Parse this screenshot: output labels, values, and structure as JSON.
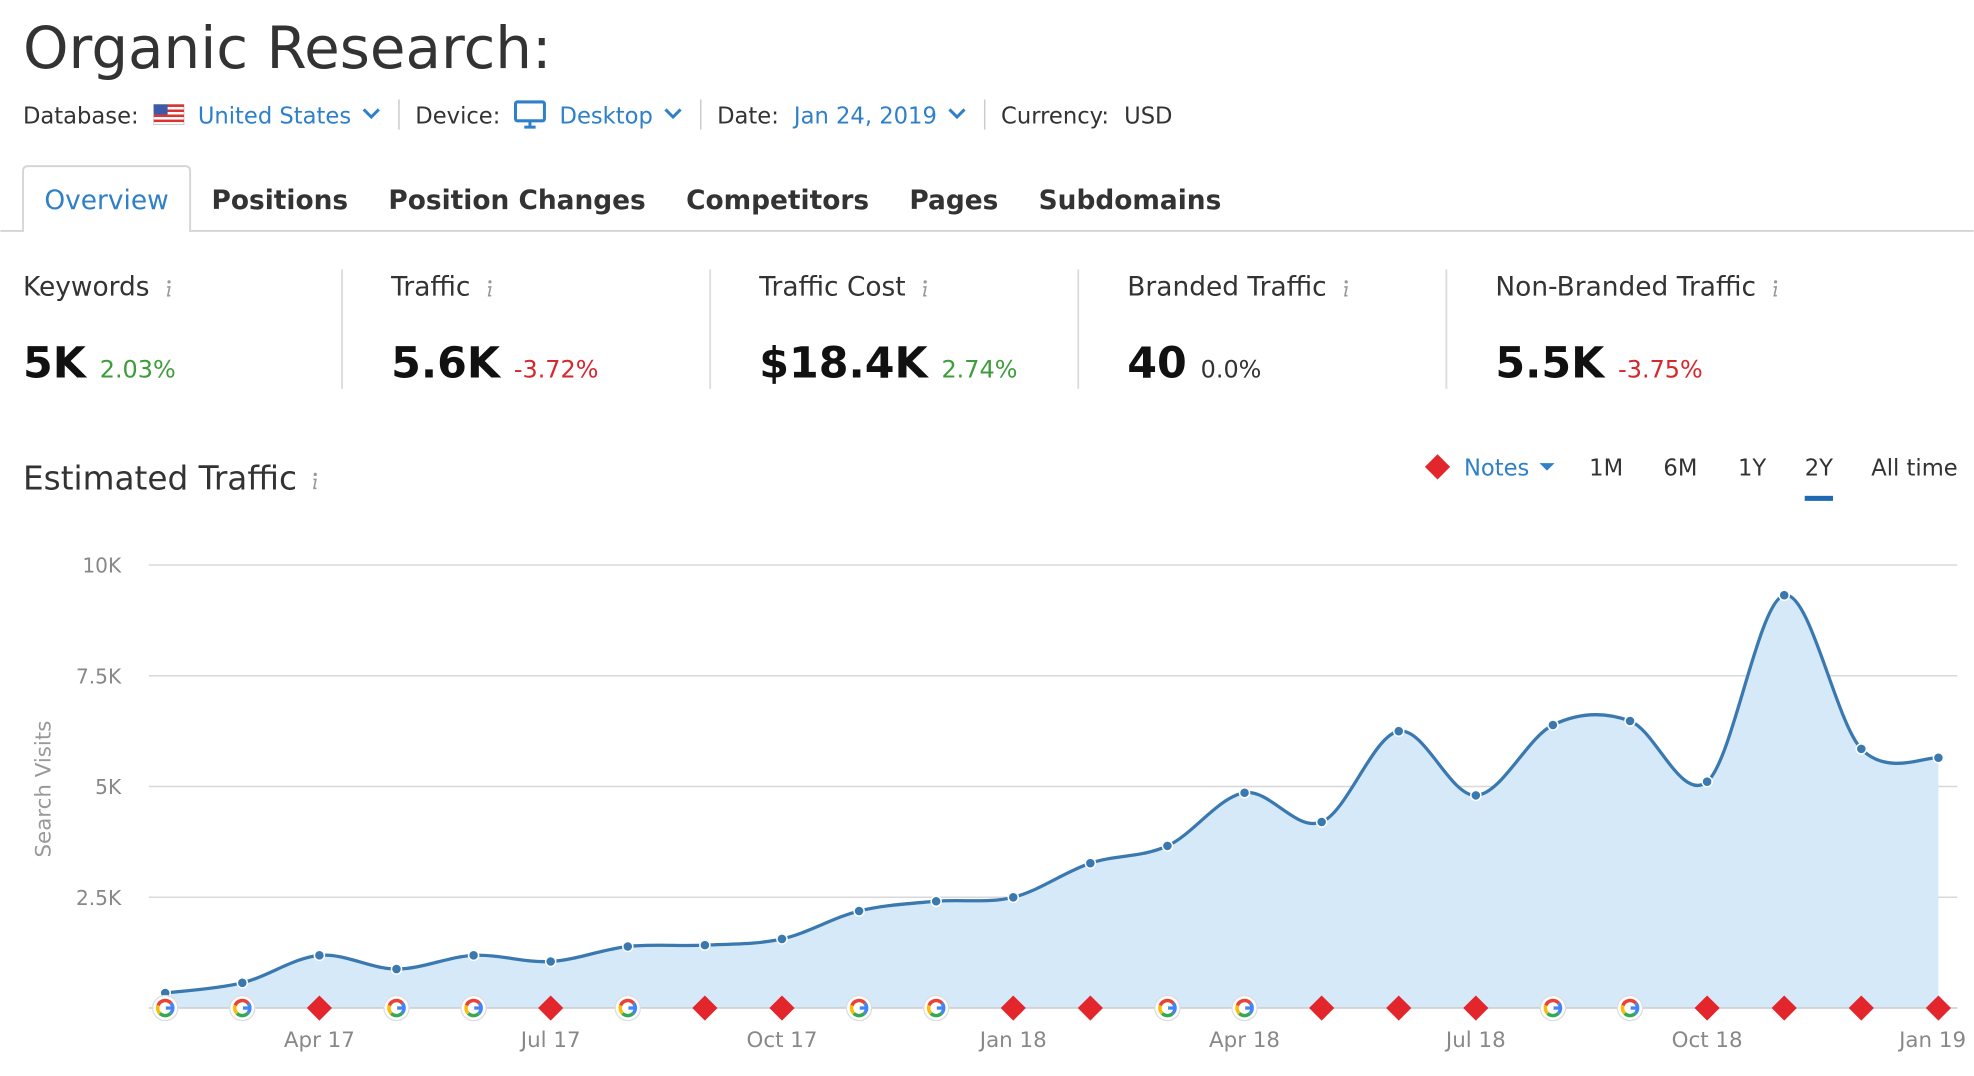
{
  "header": {
    "title": "Organic Research:",
    "filters": [
      {
        "label": "Database:",
        "value": "United States",
        "icon": "flag",
        "dropdown": true
      },
      {
        "label": "Device:",
        "value": "Desktop",
        "icon": "monitor",
        "dropdown": true
      },
      {
        "label": "Date:",
        "value": "Jan 24, 2019",
        "dropdown": true
      },
      {
        "label": "Currency:",
        "value": "USD",
        "dropdown": false
      }
    ]
  },
  "tabs": [
    "Overview",
    "Positions",
    "Position Changes",
    "Competitors",
    "Pages",
    "Subdomains"
  ],
  "active_tab": 0,
  "metrics": [
    {
      "label": "Keywords",
      "value": "5K",
      "change": "2.03%",
      "trend": "up"
    },
    {
      "label": "Traffic",
      "value": "5.6K",
      "change": "-3.72%",
      "trend": "down"
    },
    {
      "label": "Traffic Cost",
      "value": "$18.4K",
      "change": "2.74%",
      "trend": "up"
    },
    {
      "label": "Branded Traffic",
      "value": "40",
      "change": "0.0%",
      "trend": "flat"
    },
    {
      "label": "Non-Branded Traffic",
      "value": "5.5K",
      "change": "-3.75%",
      "trend": "down"
    }
  ],
  "controls": {
    "notes_label": "Notes",
    "ranges": [
      "1M",
      "6M",
      "1Y",
      "2Y",
      "All time"
    ],
    "active_range": 3
  },
  "chart_data": {
    "type": "area",
    "title": "Estimated Traffic",
    "y_label": "Search Visits",
    "categories": [
      null,
      null,
      "Apr 17",
      null,
      null,
      "Jul 17",
      null,
      null,
      "Oct 17",
      null,
      null,
      "Jan 18",
      null,
      null,
      "Apr 18",
      null,
      null,
      "Jul 18",
      null,
      null,
      "Oct 18",
      null,
      null,
      "Jan 19"
    ],
    "values": [
      340,
      570,
      1190,
      880,
      1190,
      1050,
      1390,
      1420,
      1560,
      2190,
      2410,
      2500,
      3270,
      3660,
      4860,
      4200,
      6250,
      4800,
      6390,
      6480,
      5110,
      9320,
      5850,
      5650
    ],
    "note_types": [
      "google",
      "google",
      "note",
      "google",
      "google",
      "note",
      "google",
      "note",
      "note",
      "google",
      "google",
      "note",
      "note",
      "google",
      "google",
      "note",
      "note",
      "note",
      "google",
      "google",
      "note",
      "note",
      "note",
      "note"
    ],
    "ylim": [
      0,
      10000
    ],
    "yticks": [
      {
        "value": 2500,
        "label": "2.5K"
      },
      {
        "value": 5000,
        "label": "5K"
      },
      {
        "value": 7500,
        "label": "7.5K"
      },
      {
        "value": 10000,
        "label": "10K"
      }
    ],
    "color": "#3a78b0",
    "fill": "#d5e9f9",
    "grid": true,
    "smooth": true
  }
}
